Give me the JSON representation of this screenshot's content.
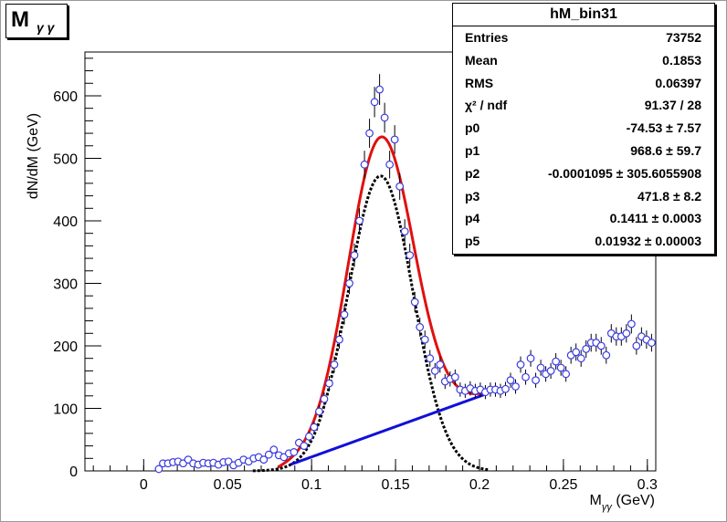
{
  "title": {
    "main": "M",
    "sub": "γ γ"
  },
  "stats": {
    "title": "hM_bin31",
    "rows": [
      {
        "name": "Entries",
        "value": "73752"
      },
      {
        "name": "Mean",
        "value": "0.1853"
      },
      {
        "name": "RMS",
        "value": "0.06397"
      },
      {
        "name": "χ² / ndf",
        "value": "91.37 / 28"
      },
      {
        "name": "p0",
        "value": "-74.53 ± 7.57"
      },
      {
        "name": "p1",
        "value": "968.6 ± 59.7"
      },
      {
        "name": "p2",
        "value": "-0.0001095 ± 305.6055908"
      },
      {
        "name": "p3",
        "value": "471.8 ± 8.2"
      },
      {
        "name": "p4",
        "value": "0.1411 ± 0.0003"
      },
      {
        "name": "p5",
        "value": "0.01932 ± 0.00003"
      }
    ]
  },
  "chart_data": {
    "type": "scatter",
    "xlabel": "M",
    "xlabel_sub": "γγ",
    "xlabel_unit": " (GeV)",
    "ylabel": "dN/dM (GeV)",
    "xlim": [
      -0.035,
      0.305
    ],
    "ylim": [
      0,
      670
    ],
    "xticks": [
      0,
      0.05,
      0.1,
      0.15,
      0.2,
      0.25,
      0.3
    ],
    "xtick_labels": [
      "0",
      "0.05",
      "0.1",
      "0.15",
      "0.2",
      "0.25",
      "0.3"
    ],
    "yticks": [
      0,
      100,
      200,
      300,
      400,
      500,
      600
    ],
    "ytick_labels": [
      "0",
      "100",
      "200",
      "300",
      "400",
      "500",
      "600"
    ],
    "colors": {
      "points": "#3a3ae0",
      "total_fit": "#e01010",
      "background_fit": "#1010d8",
      "signal_fit": "#000000"
    },
    "points": {
      "x": [
        0.009,
        0.0115,
        0.0145,
        0.0175,
        0.0205,
        0.0235,
        0.0265,
        0.0295,
        0.0325,
        0.0355,
        0.0385,
        0.0415,
        0.0445,
        0.0475,
        0.0505,
        0.0535,
        0.0565,
        0.0595,
        0.0625,
        0.0655,
        0.0685,
        0.0715,
        0.0745,
        0.0775,
        0.0805,
        0.0835,
        0.0865,
        0.0895,
        0.0925,
        0.0955,
        0.0985,
        0.1015,
        0.1045,
        0.1075,
        0.1105,
        0.1135,
        0.1165,
        0.1195,
        0.1225,
        0.1255,
        0.1285,
        0.1315,
        0.1345,
        0.1375,
        0.1405,
        0.1435,
        0.1465,
        0.1495,
        0.1525,
        0.1555,
        0.1585,
        0.1615,
        0.1645,
        0.1675,
        0.1705,
        0.1735,
        0.1765,
        0.1795,
        0.1825,
        0.1855,
        0.1885,
        0.1915,
        0.1945,
        0.1975,
        0.2005,
        0.2035,
        0.2065,
        0.2095,
        0.2125,
        0.2155,
        0.2185,
        0.2215,
        0.2245,
        0.2275,
        0.2305,
        0.2335,
        0.2365,
        0.2395,
        0.2425,
        0.2455,
        0.2485,
        0.2515,
        0.2545,
        0.2575,
        0.2605,
        0.2635,
        0.2665,
        0.2695,
        0.2725,
        0.2755,
        0.2785,
        0.2815,
        0.2845,
        0.2875,
        0.2905,
        0.2935,
        0.2965,
        0.2995,
        0.3025
      ],
      "y": [
        3,
        12,
        12,
        14,
        15,
        12,
        18,
        12,
        10,
        13,
        12,
        13,
        10,
        14,
        15,
        9,
        13,
        18,
        15,
        20,
        22,
        18,
        26,
        34,
        25,
        22,
        28,
        30,
        45,
        40,
        55,
        70,
        95,
        115,
        140,
        170,
        210,
        250,
        300,
        345,
        400,
        490,
        540,
        590,
        610,
        565,
        490,
        530,
        455,
        383,
        345,
        270,
        230,
        210,
        180,
        160,
        170,
        143,
        147,
        150,
        130,
        128,
        132,
        128,
        130,
        126,
        130,
        130,
        128,
        131,
        145,
        135,
        170,
        150,
        180,
        145,
        165,
        155,
        160,
        175,
        165,
        155,
        185,
        190,
        180,
        195,
        205,
        205,
        200,
        185,
        220,
        215,
        215,
        220,
        235,
        200,
        215,
        210,
        205
      ],
      "err": [
        2,
        3.5,
        3.5,
        3.7,
        3.9,
        3.5,
        4.2,
        3.5,
        3.2,
        3.6,
        3.5,
        3.6,
        3.2,
        3.7,
        3.9,
        3,
        3.6,
        4.2,
        3.9,
        4.5,
        4.7,
        4.2,
        5.1,
        5.8,
        5,
        4.7,
        5.3,
        5.5,
        6.7,
        6.3,
        7.4,
        8.4,
        9.7,
        10.7,
        11.8,
        13,
        14.5,
        15.8,
        17.3,
        18.6,
        20,
        22.1,
        23.2,
        24.3,
        24.7,
        23.8,
        22.1,
        23,
        21.3,
        19.6,
        18.6,
        16.4,
        15.2,
        14.5,
        13.4,
        12.6,
        13,
        12,
        12.1,
        12.2,
        11.4,
        11.3,
        11.5,
        11.3,
        11.4,
        11.2,
        11.4,
        11.4,
        11.3,
        11.4,
        12,
        11.6,
        13,
        12.2,
        13.4,
        12,
        12.8,
        12.4,
        12.6,
        13.2,
        12.8,
        12.4,
        13.6,
        13.8,
        13.4,
        14,
        14.3,
        14.3,
        14.1,
        13.6,
        14.8,
        14.7,
        14.7,
        14.8,
        15.3,
        14.1,
        14.7,
        14.5,
        14.3
      ]
    },
    "fit": {
      "p0": -74.53,
      "p1": 968.6,
      "p2": -0.0001095,
      "p3": 471.8,
      "p4": 0.1411,
      "p5": 0.01932,
      "range": [
        0.08,
        0.205
      ]
    }
  }
}
